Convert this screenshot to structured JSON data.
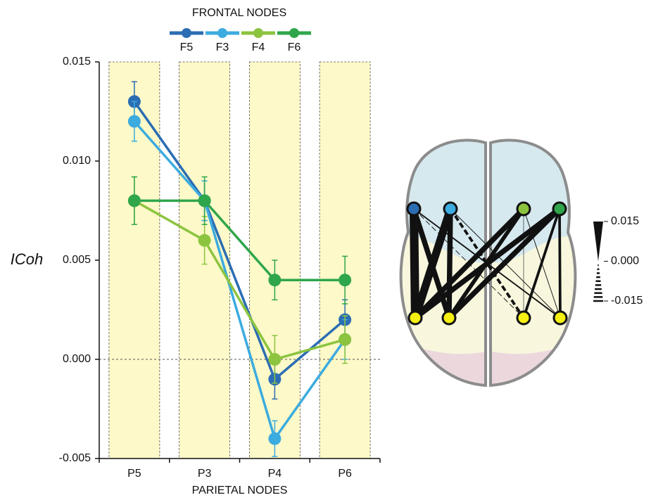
{
  "chart_data": {
    "type": "line",
    "legend_title": "FRONTAL NODES",
    "x_label": "PARIETAL NODES",
    "y_label": "ICoh",
    "categories": [
      "P5",
      "P3",
      "P4",
      "P6"
    ],
    "series": [
      {
        "name": "F5",
        "color": "#2b6db3",
        "values": [
          0.013,
          0.008,
          -0.001,
          0.002
        ],
        "errors": [
          0.001,
          0.001,
          0.001,
          0.001
        ]
      },
      {
        "name": "F3",
        "color": "#3cabdf",
        "values": [
          0.012,
          0.008,
          -0.004,
          0.001
        ],
        "errors": [
          0.001,
          0.001,
          0.0009,
          0.001
        ]
      },
      {
        "name": "F4",
        "color": "#8cc43f",
        "values": [
          0.008,
          0.006,
          0.0,
          0.001
        ],
        "errors": [
          0.0012,
          0.0012,
          0.0012,
          0.0012
        ]
      },
      {
        "name": "F6",
        "color": "#2fa64b",
        "values": [
          0.008,
          0.008,
          0.004,
          0.004
        ],
        "errors": [
          0.0012,
          0.0012,
          0.001,
          0.0012
        ]
      }
    ],
    "ylim": [
      -0.005,
      0.015
    ],
    "yticks": [
      -0.005,
      {
        "value": 0,
        "label": "0.000"
      },
      0.005,
      {
        "value": 0.01,
        "label": "0.010"
      },
      0.015
    ],
    "edge_ticks": [
      0.015,
      {
        "value": 0,
        "label": "0.000"
      },
      -0.015
    ]
  }
}
